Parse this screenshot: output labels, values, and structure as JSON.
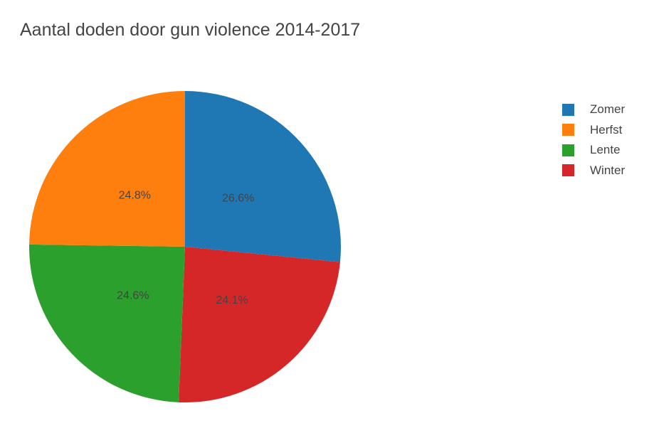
{
  "chart_data": {
    "type": "pie",
    "title": "Aantal doden door gun violence 2014-2017",
    "slices": [
      {
        "label": "Zomer",
        "value": 26.6,
        "display": "26.6%",
        "color": "#1f77b4"
      },
      {
        "label": "Winter",
        "value": 24.1,
        "display": "24.1%",
        "color": "#d62728"
      },
      {
        "label": "Lente",
        "value": 24.6,
        "display": "24.6%",
        "color": "#2ca02c"
      },
      {
        "label": "Herfst",
        "value": 24.8,
        "display": "24.8%",
        "color": "#ff7f0e"
      }
    ],
    "legend": {
      "placement": "right",
      "items": [
        {
          "label": "Zomer",
          "color": "#1f77b4"
        },
        {
          "label": "Herfst",
          "color": "#ff7f0e"
        },
        {
          "label": "Lente",
          "color": "#2ca02c"
        },
        {
          "label": "Winter",
          "color": "#d62728"
        }
      ]
    },
    "direction": "clockwise",
    "start": "top"
  }
}
